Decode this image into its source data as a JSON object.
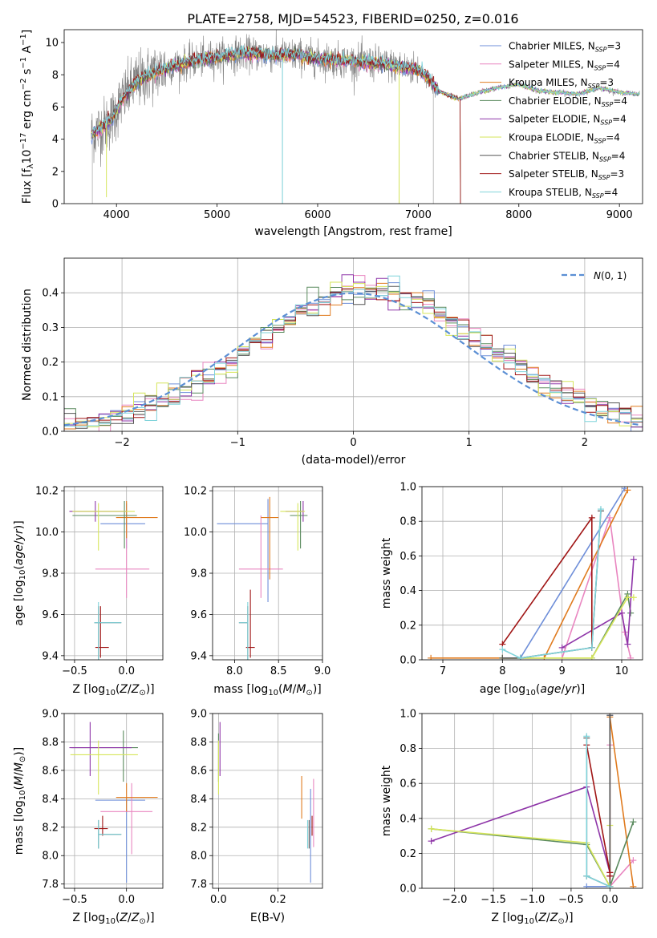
{
  "figure": {
    "title": "PLATE=2758, MJD=54523, FIBERID=0250, z=0.016"
  },
  "colors": {
    "Chabrier MILES": "#6f8fd9",
    "Salpeter MILES": "#e986c0",
    "Kroupa MILES": "#e07b1f",
    "Chabrier ELODIE": "#5a8a5e",
    "Salpeter ELODIE": "#8e35a8",
    "Kroupa ELODIE": "#d6e65a",
    "Chabrier STELIB": "#555555",
    "Salpeter STELIB": "#a01515",
    "Kroupa STELIB": "#7fd3da",
    "normal": "#5b8fd4",
    "spectrum_gray": "#808080"
  },
  "chart_data": [
    {
      "id": "spectrum",
      "type": "line",
      "title": "PLATE=2758, MJD=54523, FIBERID=0250, z=0.016",
      "xlabel": "wavelength [Angstrom, rest frame]",
      "ylabel": "Flux [f_λ 10^-17 erg cm^-2 s^-1 A^-1]",
      "xlim": [
        3480,
        9230
      ],
      "ylim": [
        0,
        10.8
      ],
      "xticks": [
        4000,
        5000,
        6000,
        7000,
        8000,
        9000
      ],
      "yticks": [
        0,
        2,
        4,
        6,
        8,
        10
      ],
      "grid": false,
      "legend_position": "top-right",
      "legend": [
        {
          "model": "Chabrier MILES",
          "label": "Chabrier MILES, N",
          "sub": "SSP",
          "n": "=3"
        },
        {
          "model": "Salpeter MILES",
          "label": "Salpeter MILES, N",
          "sub": "SSP",
          "n": "=4"
        },
        {
          "model": "Kroupa MILES",
          "label": "Kroupa MILES, N",
          "sub": "SSP",
          "n": "=3"
        },
        {
          "model": "Chabrier ELODIE",
          "label": "Chabrier ELODIE, N",
          "sub": "SSP",
          "n": "=4"
        },
        {
          "model": "Salpeter ELODIE",
          "label": "Salpeter ELODIE, N",
          "sub": "SSP",
          "n": "=4"
        },
        {
          "model": "Kroupa ELODIE",
          "label": "Kroupa ELODIE, N",
          "sub": "SSP",
          "n": "=4"
        },
        {
          "model": "Chabrier STELIB",
          "label": "Chabrier STELIB, N",
          "sub": "SSP",
          "n": "=4"
        },
        {
          "model": "Salpeter STELIB",
          "label": "Salpeter STELIB, N",
          "sub": "SSP",
          "n": "=3"
        },
        {
          "model": "Kroupa STELIB",
          "label": "Kroupa STELIB, N",
          "sub": "SSP",
          "n": "=4"
        }
      ],
      "continuum": {
        "x": [
          3750,
          3850,
          3950,
          4050,
          4200,
          4400,
          4600,
          4800,
          5000,
          5200,
          5400,
          5600,
          5800,
          6000,
          6200,
          6400,
          6600,
          6800,
          7000,
          7100,
          7200,
          7400,
          7600,
          7800,
          8000,
          8200,
          8400,
          8600,
          8800,
          9000,
          9200
        ],
        "y": [
          4.3,
          4.7,
          5.2,
          6.4,
          7.6,
          8.2,
          8.6,
          8.9,
          9.1,
          9.3,
          9.3,
          9.2,
          9.2,
          9.0,
          8.9,
          8.8,
          8.7,
          8.5,
          8.3,
          7.8,
          7.0,
          6.5,
          6.9,
          7.2,
          7.4,
          7.0,
          6.9,
          6.8,
          7.2,
          6.9,
          6.8
        ]
      }
    },
    {
      "id": "residuals",
      "type": "histogram",
      "xlabel": "(data-model)/error",
      "ylabel": "Normed distribution",
      "xlim": [
        -2.5,
        2.5
      ],
      "ylim": [
        0,
        0.5
      ],
      "xticks": [
        -2,
        -1,
        0,
        1,
        2
      ],
      "xtick_labels": [
        "−2",
        "−1",
        "0",
        "1",
        "2"
      ],
      "yticks": [
        0.0,
        0.1,
        0.2,
        0.3,
        0.4
      ],
      "grid": true,
      "legend_position": "top-right",
      "legend": [
        {
          "label": "N(0, 1)",
          "style": "dashed"
        }
      ],
      "bin_width": 0.1
    },
    {
      "id": "age_vs_Z",
      "type": "errorbar",
      "xlabel": "Z [log10(Z/Z⊙)]",
      "ylabel": "age [log10(age/yr)]",
      "xlim": [
        -0.6,
        0.35
      ],
      "ylim": [
        9.38,
        10.22
      ],
      "xticks": [
        -0.5,
        0.0
      ],
      "xtick_labels": [
        "−0.5",
        "0.0"
      ],
      "yticks": [
        9.4,
        9.6,
        9.8,
        10.0,
        10.2
      ],
      "grid": true,
      "points": [
        {
          "model": "Chabrier MILES",
          "x": 0.0,
          "y": 10.04,
          "xerr": [
            0.25,
            0.18
          ],
          "yerr": [
            0.12,
            0.1
          ]
        },
        {
          "model": "Salpeter MILES",
          "x": 0.0,
          "y": 9.82,
          "xerr": [
            0.3,
            0.22
          ],
          "yerr": [
            0.14,
            0.22
          ]
        },
        {
          "model": "Kroupa MILES",
          "x": 0.0,
          "y": 10.07,
          "xerr": [
            0.1,
            0.3
          ],
          "yerr": [
            0.1,
            0.08
          ]
        },
        {
          "model": "Chabrier ELODIE",
          "x": -0.02,
          "y": 10.08,
          "xerr": [
            0.5,
            0.12
          ],
          "yerr": [
            0.16,
            0.07
          ]
        },
        {
          "model": "Salpeter ELODIE",
          "x": -0.3,
          "y": 10.1,
          "xerr": [
            0.25,
            0.3
          ],
          "yerr": [
            0.05,
            0.05
          ]
        },
        {
          "model": "Kroupa ELODIE",
          "x": -0.27,
          "y": 10.1,
          "xerr": [
            0.25,
            0.35
          ],
          "yerr": [
            0.19,
            0.04
          ]
        },
        {
          "model": "Chabrier STELIB",
          "x": -0.27,
          "y": 9.56,
          "xerr": [
            0.04,
            0.22
          ],
          "yerr": [
            0.21,
            0.08
          ]
        },
        {
          "model": "Salpeter STELIB",
          "x": -0.25,
          "y": 9.44,
          "xerr": [
            0.05,
            0.08
          ],
          "yerr": [
            0.05,
            0.2
          ]
        },
        {
          "model": "Kroupa STELIB",
          "x": -0.27,
          "y": 9.56,
          "xerr": [
            0.04,
            0.22
          ],
          "yerr": [
            0.2,
            0.1
          ]
        }
      ]
    },
    {
      "id": "age_vs_mass",
      "type": "errorbar",
      "xlabel": "mass [log10(M/M⊙)]",
      "ylabel": "",
      "xlim": [
        7.75,
        9.0
      ],
      "ylim": [
        9.38,
        10.22
      ],
      "xticks": [
        8.0,
        8.5,
        9.0
      ],
      "yticks": [
        9.4,
        9.6,
        9.8,
        10.0,
        10.2
      ],
      "grid": true,
      "points": [
        {
          "model": "Chabrier MILES",
          "x": 8.38,
          "y": 10.04,
          "xerr": [
            0.58,
            0.0
          ],
          "yerr": [
            0.38,
            0.12
          ]
        },
        {
          "model": "Salpeter MILES",
          "x": 8.3,
          "y": 9.82,
          "xerr": [
            0.25,
            0.25
          ],
          "yerr": [
            0.14,
            0.26
          ]
        },
        {
          "model": "Kroupa MILES",
          "x": 8.4,
          "y": 10.07,
          "xerr": [
            0.1,
            0.1
          ],
          "yerr": [
            0.3,
            0.1
          ]
        },
        {
          "model": "Chabrier ELODIE",
          "x": 8.75,
          "y": 10.08,
          "xerr": [
            0.12,
            0.08
          ],
          "yerr": [
            0.16,
            0.07
          ]
        },
        {
          "model": "Salpeter ELODIE",
          "x": 8.78,
          "y": 10.1,
          "xerr": [
            0.2,
            0.0
          ],
          "yerr": [
            0.05,
            0.05
          ]
        },
        {
          "model": "Kroupa ELODIE",
          "x": 8.72,
          "y": 10.1,
          "xerr": [
            0.2,
            0.08
          ],
          "yerr": [
            0.19,
            0.04
          ]
        },
        {
          "model": "Chabrier STELIB",
          "x": 8.15,
          "y": 9.56,
          "xerr": [
            0.1,
            0.0
          ],
          "yerr": [
            0.21,
            0.08
          ]
        },
        {
          "model": "Salpeter STELIB",
          "x": 8.18,
          "y": 9.44,
          "xerr": [
            0.05,
            0.05
          ],
          "yerr": [
            0.05,
            0.28
          ]
        },
        {
          "model": "Kroupa STELIB",
          "x": 8.15,
          "y": 9.56,
          "xerr": [
            0.1,
            0.0
          ],
          "yerr": [
            0.2,
            0.1
          ]
        }
      ]
    },
    {
      "id": "weight_vs_age",
      "type": "line",
      "xlabel": "age [log10(age/yr)]",
      "ylabel": "mass weight",
      "xlim": [
        6.65,
        10.35
      ],
      "ylim": [
        0,
        1.0
      ],
      "xticks": [
        7,
        8,
        9,
        10
      ],
      "yticks": [
        0.0,
        0.2,
        0.4,
        0.6,
        0.8,
        1.0
      ],
      "grid": true,
      "series": [
        {
          "model": "Chabrier MILES",
          "x": [
            8.0,
            8.3,
            10.05
          ],
          "y": [
            0.01,
            0.01,
            0.99
          ]
        },
        {
          "model": "Salpeter MILES",
          "x": [
            9.0,
            9.8,
            10.05,
            10.15
          ],
          "y": [
            0.01,
            0.82,
            0.16,
            0.01
          ]
        },
        {
          "model": "Kroupa MILES",
          "x": [
            6.8,
            8.7,
            10.1
          ],
          "y": [
            0.01,
            0.01,
            0.98
          ]
        },
        {
          "model": "Chabrier ELODIE",
          "x": [
            8.0,
            8.3,
            9.5,
            10.1,
            10.15
          ],
          "y": [
            0.01,
            0.01,
            0.01,
            0.38,
            0.27
          ]
        },
        {
          "model": "Salpeter ELODIE",
          "x": [
            9.0,
            10.0,
            10.1,
            10.2
          ],
          "y": [
            0.07,
            0.27,
            0.09,
            0.58
          ]
        },
        {
          "model": "Kroupa ELODIE",
          "x": [
            8.0,
            8.3,
            9.5,
            10.1,
            10.2
          ],
          "y": [
            0.01,
            0.01,
            0.01,
            0.36,
            0.36
          ]
        },
        {
          "model": "Chabrier STELIB",
          "x": [
            8.0,
            8.3,
            9.5,
            9.65
          ],
          "y": [
            0.01,
            0.01,
            0.07,
            0.86
          ]
        },
        {
          "model": "Salpeter STELIB",
          "x": [
            8.0,
            9.5,
            9.5
          ],
          "y": [
            0.09,
            0.82,
            0.07
          ]
        },
        {
          "model": "Kroupa STELIB",
          "x": [
            8.0,
            8.3,
            9.5,
            9.65
          ],
          "y": [
            0.06,
            0.01,
            0.07,
            0.87
          ]
        }
      ]
    },
    {
      "id": "mass_vs_Z",
      "type": "errorbar",
      "xlabel": "Z [log10(Z/Z⊙)]",
      "ylabel": "mass [log10(M/M⊙)]",
      "xlim": [
        -0.6,
        0.35
      ],
      "ylim": [
        7.77,
        9.0
      ],
      "xticks": [
        -0.5,
        0.0
      ],
      "xtick_labels": [
        "−0.5",
        "0.0"
      ],
      "yticks": [
        7.8,
        8.0,
        8.2,
        8.4,
        8.6,
        8.8,
        9.0
      ],
      "grid": true,
      "points": [
        {
          "model": "Chabrier MILES",
          "x": 0.0,
          "y": 8.39,
          "xerr": [
            0.3,
            0.18
          ],
          "yerr": [
            0.58,
            0.0
          ]
        },
        {
          "model": "Salpeter MILES",
          "x": 0.05,
          "y": 8.31,
          "xerr": [
            0.3,
            0.2
          ],
          "yerr": [
            0.3,
            0.2
          ]
        },
        {
          "model": "Kroupa MILES",
          "x": 0.0,
          "y": 8.41,
          "xerr": [
            0.1,
            0.3
          ],
          "yerr": [
            0.1,
            0.1
          ]
        },
        {
          "model": "Chabrier ELODIE",
          "x": -0.03,
          "y": 8.76,
          "xerr": [
            0.5,
            0.14
          ],
          "yerr": [
            0.24,
            0.12
          ]
        },
        {
          "model": "Salpeter ELODIE",
          "x": -0.35,
          "y": 8.76,
          "xerr": [
            0.2,
            0.4
          ],
          "yerr": [
            0.2,
            0.18
          ]
        },
        {
          "model": "Kroupa ELODIE",
          "x": -0.27,
          "y": 8.71,
          "xerr": [
            0.27,
            0.38
          ],
          "yerr": [
            0.28,
            0.1
          ]
        },
        {
          "model": "Chabrier STELIB",
          "x": -0.27,
          "y": 8.15,
          "xerr": [
            0.0,
            0.22
          ],
          "yerr": [
            0.1,
            0.1
          ]
        },
        {
          "model": "Salpeter STELIB",
          "x": -0.23,
          "y": 8.19,
          "xerr": [
            0.08,
            0.05
          ],
          "yerr": [
            0.05,
            0.09
          ]
        },
        {
          "model": "Kroupa STELIB",
          "x": -0.27,
          "y": 8.15,
          "xerr": [
            0.0,
            0.22
          ],
          "yerr": [
            0.1,
            0.1
          ]
        }
      ]
    },
    {
      "id": "mass_vs_ebv",
      "type": "errorbar",
      "xlabel": "E(B-V)",
      "ylabel": "",
      "xlim": [
        -0.02,
        0.35
      ],
      "ylim": [
        7.77,
        9.0
      ],
      "xticks": [
        0.0,
        0.2
      ],
      "yticks": [
        7.8,
        8.0,
        8.2,
        8.4,
        8.6,
        8.8,
        9.0
      ],
      "grid": true,
      "points": [
        {
          "model": "Chabrier MILES",
          "x": 0.31,
          "y": 8.39,
          "xerr": [
            0,
            0
          ],
          "yerr": [
            0.58,
            0.08
          ]
        },
        {
          "model": "Salpeter MILES",
          "x": 0.32,
          "y": 8.31,
          "xerr": [
            0,
            0
          ],
          "yerr": [
            0.25,
            0.23
          ]
        },
        {
          "model": "Kroupa MILES",
          "x": 0.28,
          "y": 8.41,
          "xerr": [
            0,
            0
          ],
          "yerr": [
            0.15,
            0.15
          ]
        },
        {
          "model": "Chabrier ELODIE",
          "x": 0.0,
          "y": 8.76,
          "xerr": [
            0,
            0
          ],
          "yerr": [
            0.24,
            0.1
          ]
        },
        {
          "model": "Salpeter ELODIE",
          "x": 0.005,
          "y": 8.76,
          "xerr": [
            0,
            0
          ],
          "yerr": [
            0.2,
            0.18
          ]
        },
        {
          "model": "Kroupa ELODIE",
          "x": 0.0,
          "y": 8.71,
          "xerr": [
            0,
            0
          ],
          "yerr": [
            0.28,
            0.1
          ]
        },
        {
          "model": "Chabrier STELIB",
          "x": 0.305,
          "y": 8.15,
          "xerr": [
            0,
            0
          ],
          "yerr": [
            0.1,
            0.1
          ]
        },
        {
          "model": "Salpeter STELIB",
          "x": 0.315,
          "y": 8.19,
          "xerr": [
            0,
            0
          ],
          "yerr": [
            0.05,
            0.09
          ]
        },
        {
          "model": "Kroupa STELIB",
          "x": 0.3,
          "y": 8.15,
          "xerr": [
            0,
            0
          ],
          "yerr": [
            0.1,
            0.1
          ]
        }
      ]
    },
    {
      "id": "weight_vs_Z",
      "type": "line",
      "xlabel": "Z [log10(Z/Z⊙)]",
      "ylabel": "mass weight",
      "xlim": [
        -2.42,
        0.42
      ],
      "ylim": [
        0,
        1.0
      ],
      "xticks": [
        -2.0,
        -1.5,
        -1.0,
        -0.5,
        0.0
      ],
      "xtick_labels": [
        "−2.0",
        "−1.5",
        "−1.0",
        "−0.5",
        "0.0"
      ],
      "yticks": [
        0.0,
        0.2,
        0.4,
        0.6,
        0.8,
        1.0
      ],
      "grid": true,
      "series": [
        {
          "model": "Chabrier MILES",
          "x": [
            -0.3,
            0.0,
            0.0
          ],
          "y": [
            0.01,
            0.01,
            0.99
          ]
        },
        {
          "model": "Salpeter MILES",
          "x": [
            0.0,
            0.0,
            0.3
          ],
          "y": [
            0.82,
            0.01,
            0.16
          ]
        },
        {
          "model": "Kroupa MILES",
          "x": [
            0.0,
            0.0,
            0.3
          ],
          "y": [
            0.01,
            0.98,
            0.01
          ]
        },
        {
          "model": "Chabrier ELODIE",
          "x": [
            -2.3,
            -0.3,
            0.0,
            0.3
          ],
          "y": [
            0.34,
            0.25,
            0.01,
            0.38
          ]
        },
        {
          "model": "Salpeter ELODIE",
          "x": [
            -2.3,
            -0.3,
            0.0,
            0.0
          ],
          "y": [
            0.27,
            0.58,
            0.09,
            0.07
          ]
        },
        {
          "model": "Kroupa ELODIE",
          "x": [
            -2.3,
            -0.3,
            0.0,
            0.0
          ],
          "y": [
            0.34,
            0.26,
            0.01,
            0.36
          ]
        },
        {
          "model": "Chabrier STELIB",
          "x": [
            -0.3,
            -0.3,
            0.0,
            0.0
          ],
          "y": [
            0.86,
            0.07,
            0.01,
            0.99
          ]
        },
        {
          "model": "Salpeter STELIB",
          "x": [
            -0.3,
            0.0,
            0.0
          ],
          "y": [
            0.82,
            0.09,
            0.07
          ]
        },
        {
          "model": "Kroupa STELIB",
          "x": [
            -0.3,
            -0.3,
            0.0
          ],
          "y": [
            0.87,
            0.07,
            0.01
          ]
        }
      ]
    }
  ]
}
